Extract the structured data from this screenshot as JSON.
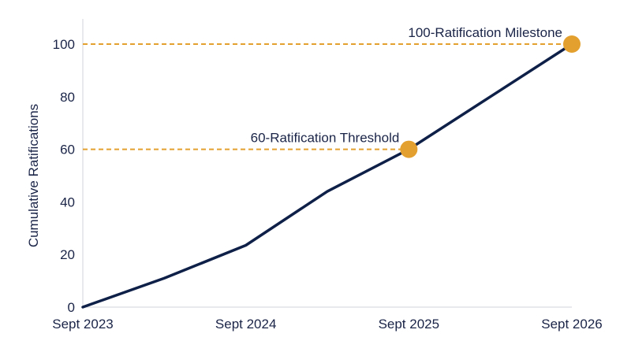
{
  "chart_data": {
    "type": "line",
    "title": "",
    "xlabel": "",
    "ylabel": "Cumulative Ratifications",
    "x_ticks": [
      "Sept 2023",
      "Sept 2024",
      "Sept 2025",
      "Sept 2026"
    ],
    "y_ticks": [
      0,
      20,
      40,
      60,
      80,
      100
    ],
    "xlim": [
      "Sept 2023",
      "Sept 2026"
    ],
    "ylim": [
      0,
      100
    ],
    "grid": false,
    "series": [
      {
        "x": [
          "Sept 2023",
          "Mar 2024",
          "Sept 2024",
          "Mar 2025",
          "Sept 2025",
          "Mar 2026",
          "Sept 2026"
        ],
        "values": [
          0,
          11,
          23.5,
          44,
          60,
          80,
          100
        ],
        "color": "#0f2048"
      }
    ],
    "annotations": [
      {
        "label": "60-Ratification Threshold",
        "x": "Sept 2025",
        "y": 60,
        "color": "#e3a02e"
      },
      {
        "label": "100-Ratification Milestone",
        "x": "Sept 2026",
        "y": 100,
        "color": "#e3a02e"
      }
    ]
  }
}
